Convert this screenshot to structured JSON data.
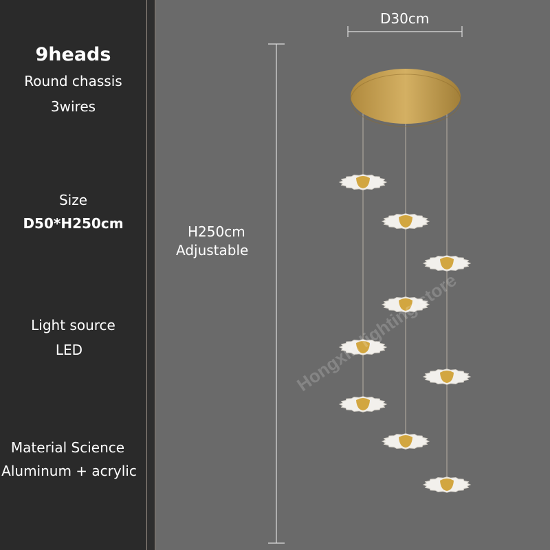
{
  "specs": {
    "heads": "9heads",
    "chassis": "Round chassis",
    "wires": "3wires",
    "size_label": "Size",
    "size_value": "D50*H250cm",
    "light_label": "Light source",
    "light_value": "LED",
    "material_label": "Material Science",
    "material_value": "Aluminum + acrylic"
  },
  "dimensions": {
    "diameter": "D30cm",
    "height": "H250cm",
    "height_note": "Adjustable"
  },
  "watermark": "Hongxin lighting store",
  "colors": {
    "panel": "#2a2a2a",
    "background": "#6a6a6a",
    "gold": "#c9a254",
    "shade": "#f2f0ec"
  }
}
